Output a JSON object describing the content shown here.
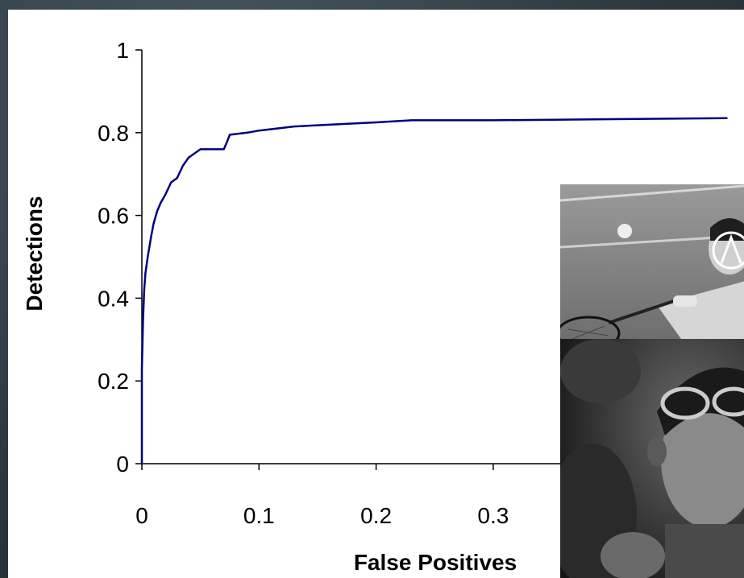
{
  "slide": {
    "background_color": "#34424a",
    "panel_color": "#ffffff"
  },
  "chart_data": {
    "type": "line",
    "title": "",
    "xlabel": "False Positives",
    "ylabel": "Detections",
    "xlim": [
      0,
      0.5
    ],
    "ylim": [
      0,
      1
    ],
    "x_ticks": [
      "0",
      "0.1",
      "0.2",
      "0.3"
    ],
    "y_ticks": [
      "0",
      "0.2",
      "0.4",
      "0.6",
      "0.8",
      "1"
    ],
    "grid": false,
    "legend": "none",
    "line_color": "#000080",
    "series": [
      {
        "x": [
          0,
          0,
          0.001,
          0.002,
          0.003,
          0.005,
          0.008,
          0.01,
          0.013,
          0.016,
          0.02,
          0.025,
          0.03,
          0.035,
          0.04,
          0.045,
          0.05,
          0.06,
          0.07,
          0.073,
          0.075,
          0.09,
          0.1,
          0.13,
          0.2,
          0.23,
          0.3,
          0.5
        ],
        "y": [
          0,
          0.23,
          0.35,
          0.42,
          0.46,
          0.5,
          0.55,
          0.58,
          0.61,
          0.63,
          0.65,
          0.68,
          0.69,
          0.72,
          0.74,
          0.75,
          0.76,
          0.76,
          0.76,
          0.78,
          0.795,
          0.8,
          0.805,
          0.815,
          0.825,
          0.83,
          0.83,
          0.835
        ]
      }
    ]
  },
  "insets": [
    {
      "name": "badminton-photo",
      "description_icon": "photo-badminton-player"
    },
    {
      "name": "crowd-photo",
      "description_icon": "photo-girl-with-sunglasses"
    }
  ]
}
